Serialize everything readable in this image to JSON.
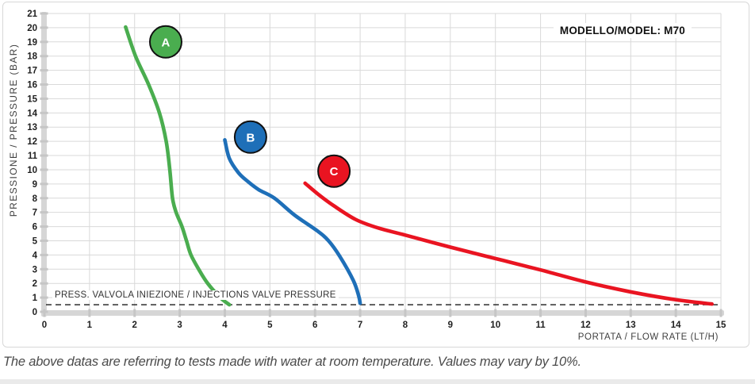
{
  "page": {
    "caption": "The above datas are referring to tests made with water at room temperature. Values may vary by 10%."
  },
  "chart_data": {
    "type": "line",
    "title": "MODELLO/MODEL: M70",
    "xlabel": "PORTATA / FLOW RATE (LT/H)",
    "ylabel": "PRESSIONE / PRESSURE (BAR)",
    "xlim": [
      0,
      15
    ],
    "ylim": [
      0,
      21
    ],
    "x_ticks": [
      0,
      1,
      2,
      3,
      4,
      5,
      6,
      7,
      8,
      9,
      10,
      11,
      12,
      13,
      14,
      15
    ],
    "y_ticks": [
      0,
      1,
      2,
      3,
      4,
      5,
      6,
      7,
      8,
      9,
      10,
      11,
      12,
      13,
      14,
      15,
      16,
      17,
      18,
      19,
      20,
      21
    ],
    "grid": true,
    "legend_position": "badges-on-curves",
    "reference_line": {
      "label": "PRESS. VALVOLA INIEZIONE / INJECTIONS VALVE PRESSURE",
      "y": 0.5,
      "style": "dashed",
      "color": "#1a1a1a"
    },
    "series": [
      {
        "name": "A",
        "color": "#4aad4f",
        "badge": {
          "x": 2.69,
          "y": 19.0
        },
        "points": [
          [
            1.8,
            20.05
          ],
          [
            2.02,
            18
          ],
          [
            2.31,
            16
          ],
          [
            2.55,
            14
          ],
          [
            2.7,
            12
          ],
          [
            2.78,
            10
          ],
          [
            2.84,
            8
          ],
          [
            2.92,
            7
          ],
          [
            3.05,
            6
          ],
          [
            3.15,
            5
          ],
          [
            3.25,
            4
          ],
          [
            3.42,
            3
          ],
          [
            3.62,
            2
          ],
          [
            3.9,
            1
          ],
          [
            4.1,
            0.5
          ]
        ]
      },
      {
        "name": "B",
        "color": "#1e6fb8",
        "badge": {
          "x": 4.57,
          "y": 12.3
        },
        "points": [
          [
            4.0,
            12.1
          ],
          [
            4.1,
            10.8
          ],
          [
            4.3,
            9.8
          ],
          [
            4.5,
            9.2
          ],
          [
            4.75,
            8.6
          ],
          [
            5.1,
            8.0
          ],
          [
            5.55,
            6.8
          ],
          [
            6.05,
            5.7
          ],
          [
            6.3,
            5.0
          ],
          [
            6.55,
            3.9
          ],
          [
            6.85,
            2.2
          ],
          [
            6.97,
            1.1
          ],
          [
            7.0,
            0.6
          ]
        ]
      },
      {
        "name": "C",
        "color": "#e91421",
        "badge": {
          "x": 6.42,
          "y": 9.9
        },
        "points": [
          [
            5.78,
            9.05
          ],
          [
            6.1,
            8.2
          ],
          [
            6.4,
            7.5
          ],
          [
            6.9,
            6.5
          ],
          [
            7.4,
            5.9
          ],
          [
            8.0,
            5.4
          ],
          [
            9.0,
            4.55
          ],
          [
            10.0,
            3.75
          ],
          [
            11.0,
            2.95
          ],
          [
            12.0,
            2.1
          ],
          [
            13.0,
            1.4
          ],
          [
            14.0,
            0.85
          ],
          [
            14.8,
            0.55
          ]
        ]
      }
    ]
  },
  "colors": {
    "grid": "#d9d9d9",
    "axis_band": "#d6d6d6",
    "axis_tick": "#c6c6c6",
    "tick_label": "#1f1f1f",
    "axis_title": "#3f3f3f",
    "badge_border": "#111111",
    "badge_text": "#ffffff",
    "frame_border": "#d8d8d8"
  }
}
